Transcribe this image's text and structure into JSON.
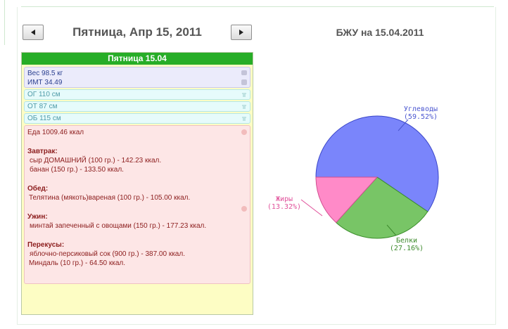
{
  "navigation": {
    "prev_label": "◄",
    "next_label": "►",
    "date_title": "Пятница, Апр 15, 2011"
  },
  "chart_title": "БЖУ на 15.04.2011",
  "day": {
    "header": "Пятница 15.04",
    "weight": "Вес 98.5 кг",
    "bmi": "ИМТ 34.49",
    "og": "ОГ 110 см",
    "ot": "ОТ 87 см",
    "ob": "ОБ 115 см",
    "food_total": "Еда 1009.46 ккал",
    "meals": [
      {
        "title": "Завтрак:",
        "items": [
          "сыр ДОМАШНИЙ (100 гр.) - 142.23 ккал.",
          "банан (150 гр.) - 133.50 ккал."
        ]
      },
      {
        "title": "Обед:",
        "items": [
          "Телятина (мякоть)вареная (100 гр.) - 105.00 ккал."
        ]
      },
      {
        "title": "Ужин:",
        "items": [
          "минтай запеченный с овощами (150 гр.) - 177.23 ккал."
        ]
      },
      {
        "title": "Перекусы:",
        "items": [
          "яблочно-персиковый сок (900 гр.) - 387.00 ккал.",
          "Миндаль (10 гр.) - 64.50 ккал."
        ]
      }
    ]
  },
  "colors": {
    "carbs": "#7a85fb",
    "protein": "#78c566",
    "fat": "#ff8ac8"
  },
  "chart_data": {
    "type": "pie",
    "title": "БЖУ на 15.04.2011",
    "slices": [
      {
        "label": "Углеводы",
        "pct_label": "(59.52%)",
        "value": 59.52,
        "color": "#7a85fb",
        "stroke": "#3a46c8",
        "text_color": "#4a56d0"
      },
      {
        "label": "Белки",
        "pct_label": "(27.16%)",
        "value": 27.16,
        "color": "#78c566",
        "stroke": "#3a8d2a",
        "text_color": "#3d8a2c"
      },
      {
        "label": "Жиры",
        "pct_label": "(13.32%)",
        "value": 13.32,
        "color": "#ff8ac8",
        "stroke": "#d0508f",
        "text_color": "#e0509a"
      }
    ]
  }
}
